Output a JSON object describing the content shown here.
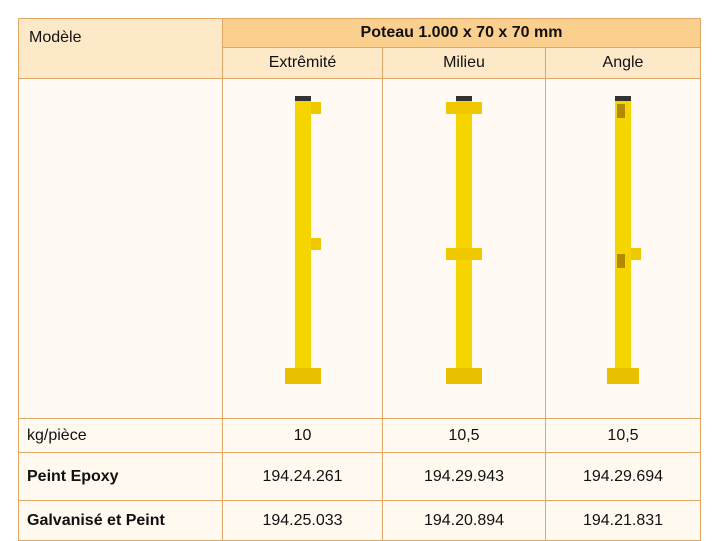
{
  "header": {
    "model": "Modèle",
    "group": "Poteau 1.000 x 70 x 70 mm",
    "columns": [
      "Extrêmité",
      "Milieu",
      "Angle"
    ]
  },
  "rows": [
    {
      "label": "kg/pièce",
      "values": [
        "10",
        "10,5",
        "10,5"
      ]
    },
    {
      "label": "Peint Epoxy",
      "values": [
        "194.24.261",
        "194.29.943",
        "194.29.694"
      ]
    },
    {
      "label": "Galvanisé et Peint",
      "values": [
        "194.25.033",
        "194.20.894",
        "194.21.831"
      ]
    }
  ]
}
